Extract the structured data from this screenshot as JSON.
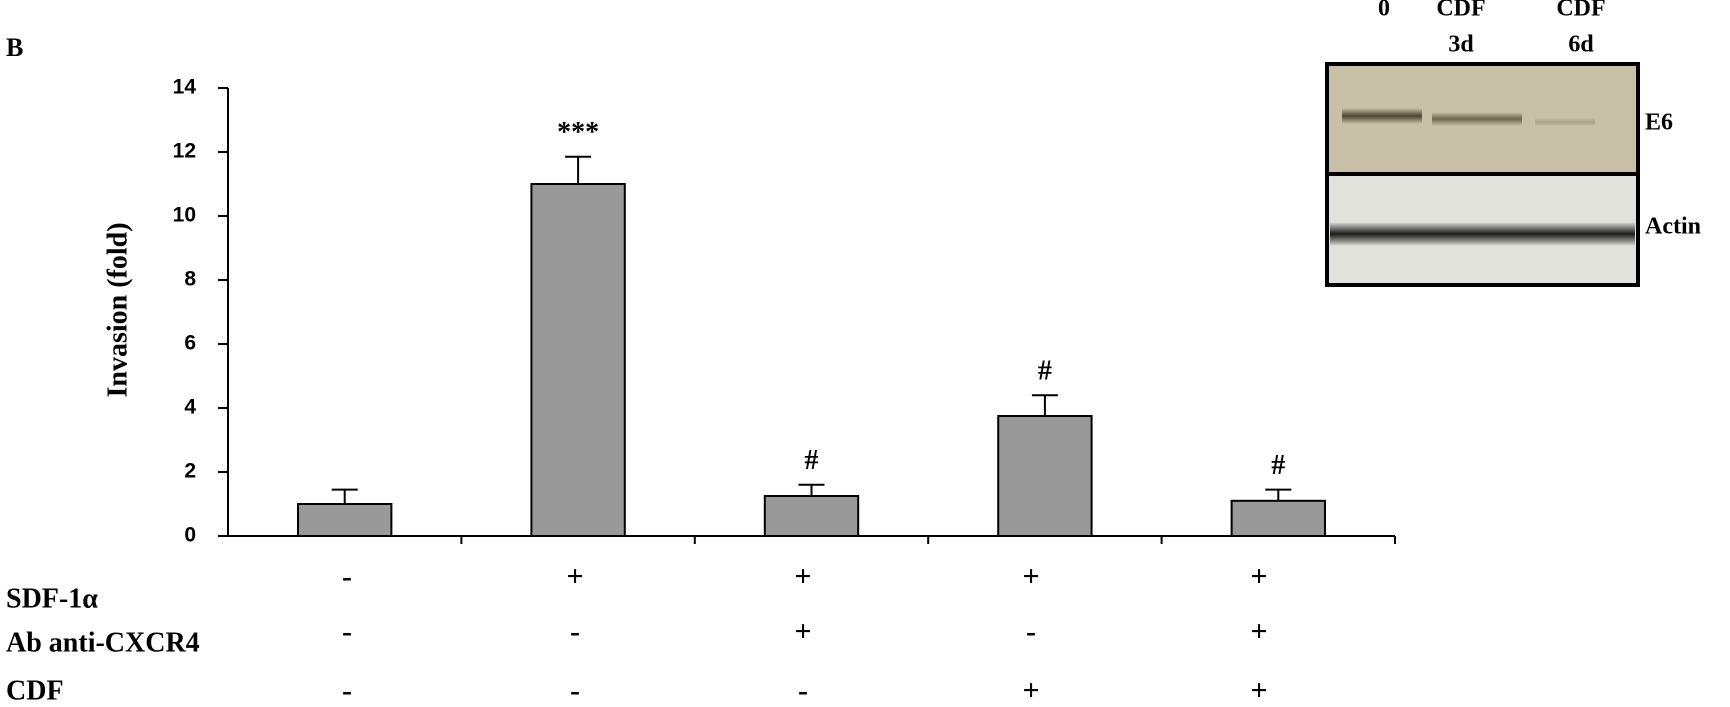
{
  "chart_data": {
    "type": "bar",
    "panel_label": "B",
    "ylabel": "Invasion (fold)",
    "values": [
      1.0,
      11.0,
      1.25,
      3.75,
      1.1
    ],
    "errors": [
      0.45,
      0.85,
      0.35,
      0.65,
      0.35
    ],
    "annotations": [
      null,
      "***",
      "#",
      "#",
      "#"
    ],
    "color": "#999999",
    "ylim": [
      0,
      14
    ],
    "yticks": [
      0,
      2,
      4,
      6,
      8,
      10,
      12,
      14
    ],
    "treatments": [
      {
        "name": "SDF-1α",
        "signs": [
          "-",
          "+",
          "+",
          "+",
          "+"
        ]
      },
      {
        "name": "Ab anti-CXCR4",
        "signs": [
          "-",
          "-",
          "+",
          "-",
          "+"
        ]
      },
      {
        "name": "CDF",
        "signs": [
          "-",
          "-",
          "-",
          "+",
          "+"
        ]
      }
    ],
    "blot": {
      "lanes": [
        [
          "0"
        ],
        [
          "CDF",
          "3d"
        ],
        [
          "CDF",
          "6d"
        ]
      ],
      "bands": [
        "E6",
        "Actin"
      ]
    }
  }
}
